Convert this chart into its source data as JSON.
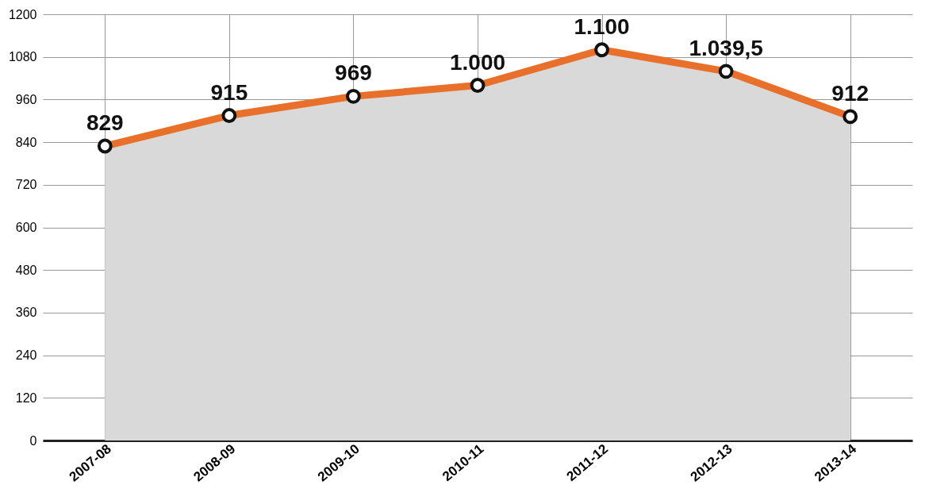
{
  "chart_data": {
    "type": "area",
    "categories": [
      "2007-08",
      "2008-09",
      "2009-10",
      "2010-11",
      "2011-12",
      "2012-13",
      "2013-14"
    ],
    "series": [
      {
        "color": "#e8702a",
        "values": [
          829,
          915,
          969,
          1000,
          1100,
          1039.5,
          912
        ],
        "value_labels": [
          "829",
          "915",
          "969",
          "1.000",
          "1.100",
          "1.039,5",
          "912"
        ]
      }
    ],
    "ylim": [
      0,
      1200
    ],
    "yticks": [
      0,
      120,
      240,
      360,
      480,
      600,
      720,
      840,
      960,
      1080,
      1200
    ],
    "grid": true,
    "marker": "circle"
  }
}
